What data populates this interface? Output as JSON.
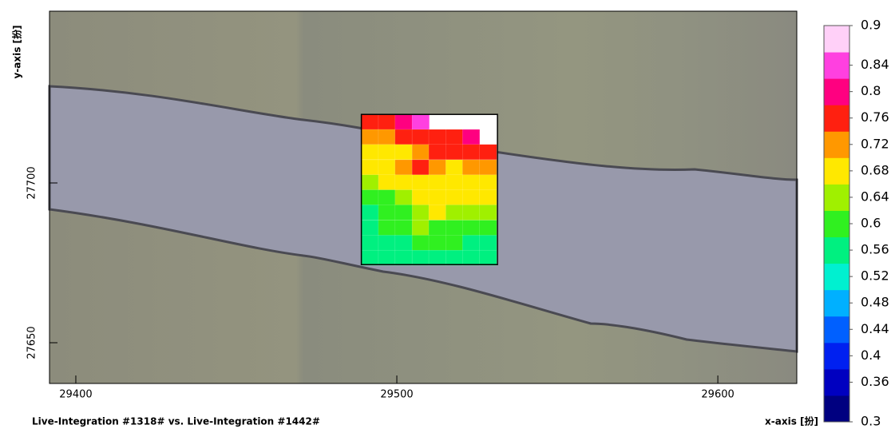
{
  "chart_data": {
    "type": "heatmap",
    "xlabel": "x-axis [扮]",
    "ylabel": "y-axis [扮]",
    "footer": "Live-Integration #1318# vs. Live-Integration #1442#",
    "xlim": [
      29391.8,
      29624.6
    ],
    "ylim": [
      27637.25,
      27753.75
    ],
    "xticks": [
      29400,
      29500,
      29600
    ],
    "yticks": [
      27650,
      27700
    ],
    "x": [
      29491.6,
      29496.9,
      29502.1,
      29507.4,
      29512.6,
      29517.9,
      29523.1,
      29528.4
    ],
    "y": [
      27719.1,
      27714.4,
      27709.7,
      27704.9,
      27700.2,
      27695.5,
      27690.8,
      27686.0,
      27681.3,
      27676.6
    ],
    "values": [
      [
        0.76,
        0.78,
        0.8,
        0.84,
        null,
        null,
        null,
        null
      ],
      [
        0.72,
        0.72,
        0.74,
        0.74,
        0.76,
        0.78,
        0.82,
        null
      ],
      [
        0.68,
        0.7,
        0.7,
        0.72,
        0.74,
        0.74,
        0.74,
        0.76
      ],
      [
        0.66,
        0.68,
        0.72,
        0.74,
        0.72,
        0.7,
        0.72,
        0.72
      ],
      [
        0.64,
        0.66,
        0.68,
        0.7,
        0.68,
        0.7,
        0.7,
        0.68
      ],
      [
        0.6,
        0.62,
        0.64,
        0.66,
        0.66,
        0.68,
        0.66,
        0.66
      ],
      [
        0.58,
        0.6,
        0.62,
        0.64,
        0.66,
        0.64,
        0.64,
        0.64
      ],
      [
        0.58,
        0.6,
        0.62,
        0.64,
        0.62,
        0.62,
        0.62,
        0.6
      ],
      [
        0.56,
        0.58,
        0.58,
        0.6,
        0.6,
        0.6,
        0.58,
        0.58
      ],
      [
        0.54,
        0.54,
        0.56,
        0.56,
        0.56,
        0.56,
        0.56,
        0.56
      ]
    ],
    "zlim": [
      0.3,
      0.9
    ],
    "zticks": [
      0.3,
      0.36,
      0.4,
      0.44,
      0.48,
      0.52,
      0.56,
      0.6,
      0.64,
      0.68,
      0.72,
      0.76,
      0.8,
      0.84,
      0.9
    ],
    "colormap": [
      "#000080",
      "#0000c0",
      "#0020f0",
      "#0060ff",
      "#00b0ff",
      "#00f0d0",
      "#00f080",
      "#30f020",
      "#a0f000",
      "#ffe800",
      "#ff9800",
      "#ff2010",
      "#ff0080",
      "#ff40e0",
      "#ffd0f8"
    ]
  }
}
